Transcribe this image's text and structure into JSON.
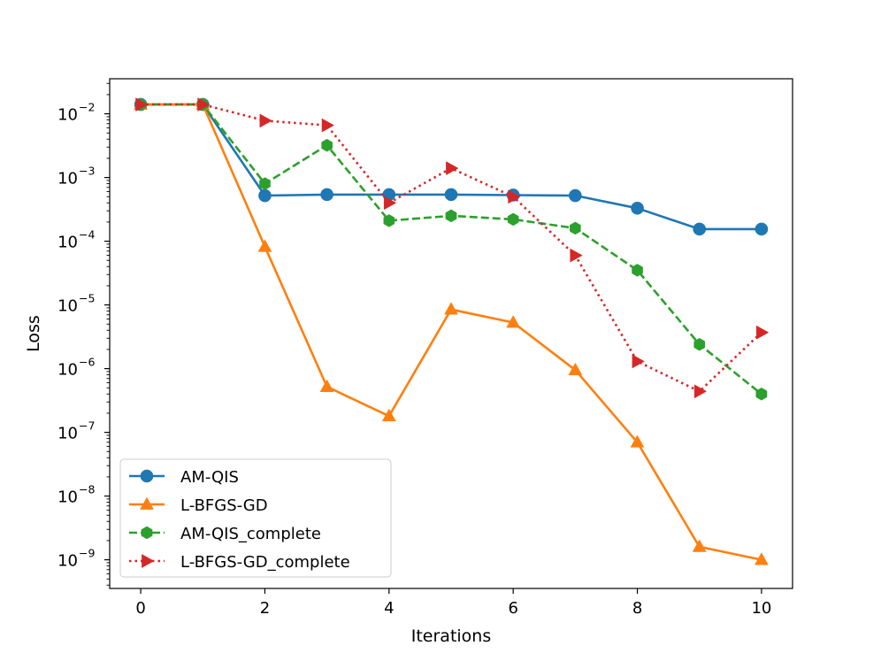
{
  "chart_data": {
    "type": "line",
    "title": "",
    "xlabel": "Iterations",
    "ylabel": "Loss",
    "yscale": "log",
    "xlim": [
      -0.5,
      10.5
    ],
    "ylim_exp": [
      -9.45,
      -1.45
    ],
    "xticks": [
      0,
      2,
      4,
      6,
      8,
      10
    ],
    "yticks": [
      {
        "base": "10",
        "exp": "−9",
        "value": -9
      },
      {
        "base": "10",
        "exp": "−8",
        "value": -8
      },
      {
        "base": "10",
        "exp": "−7",
        "value": -7
      },
      {
        "base": "10",
        "exp": "−6",
        "value": -6
      },
      {
        "base": "10",
        "exp": "−5",
        "value": -5
      },
      {
        "base": "10",
        "exp": "−4",
        "value": -4
      },
      {
        "base": "10",
        "exp": "−3",
        "value": -3
      },
      {
        "base": "10",
        "exp": "−2",
        "value": -2
      }
    ],
    "legend_position": "lower-left",
    "x": [
      0,
      1,
      2,
      3,
      4,
      5,
      6,
      7,
      8,
      9,
      10
    ],
    "series": [
      {
        "name": "AM-QIS",
        "color": "#1f77b4",
        "dash": "solid",
        "marker": "circle",
        "values": [
          0.014,
          0.014,
          0.00052,
          0.00054,
          0.00054,
          0.00054,
          0.00053,
          0.00052,
          0.00033,
          0.000155,
          0.000155
        ]
      },
      {
        "name": "L-BFGS-GD",
        "color": "#ff7f0e",
        "dash": "solid",
        "marker": "triangle-up",
        "values": [
          0.014,
          0.014,
          8.2e-05,
          5.2e-07,
          1.8e-07,
          8.5e-06,
          5.3e-06,
          9.5e-07,
          7e-08,
          1.6e-09,
          1e-09
        ]
      },
      {
        "name": "AM-QIS_complete",
        "color": "#2ca02c",
        "dash": "dashed",
        "marker": "hexagon",
        "values": [
          0.014,
          0.014,
          0.0008,
          0.0032,
          0.00021,
          0.00025,
          0.00022,
          0.00016,
          3.5e-05,
          2.4e-06,
          4e-07
        ]
      },
      {
        "name": "L-BFGS-GD_complete",
        "color": "#d62728",
        "dash": "dotted",
        "marker": "triangle-right",
        "values": [
          0.014,
          0.014,
          0.0078,
          0.0066,
          0.0004,
          0.0014,
          0.0005,
          6e-05,
          1.3e-06,
          4.4e-07,
          3.7e-06
        ]
      }
    ]
  }
}
